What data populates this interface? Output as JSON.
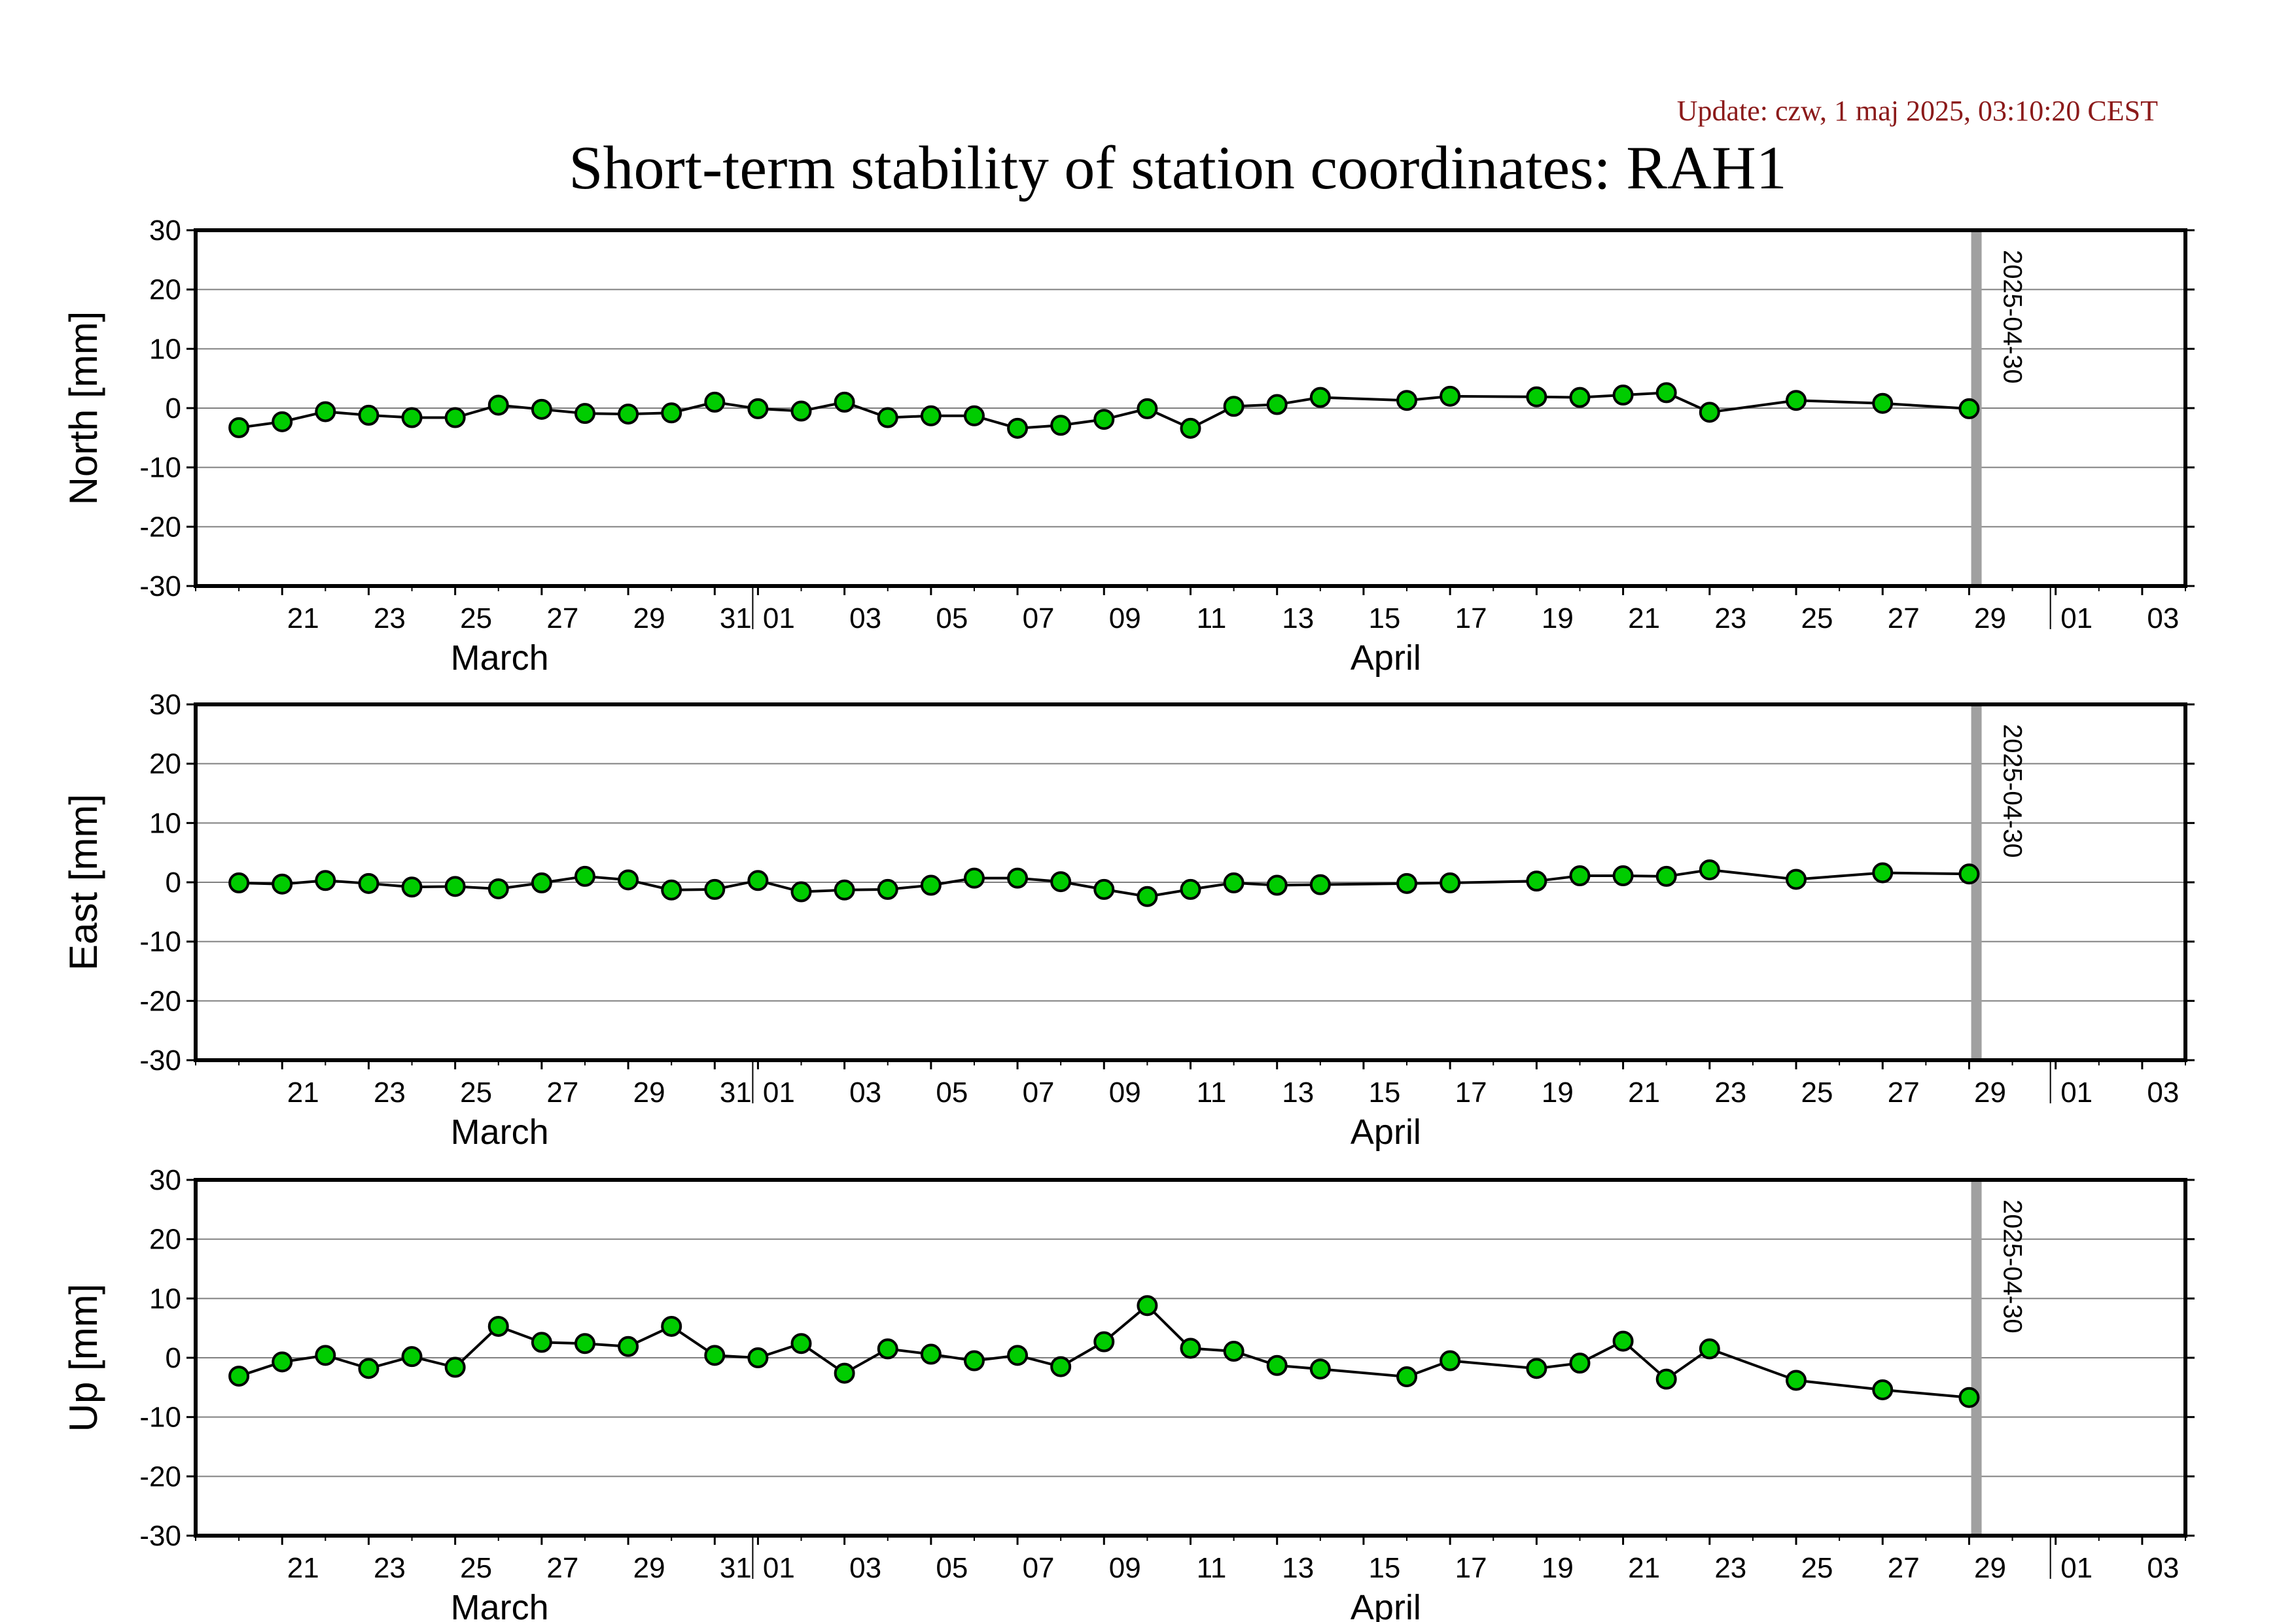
{
  "update_text": "Update: czw, 1 maj 2025, 03:10:20 CEST",
  "title": "Short-term stability of station coordinates: RAH1",
  "colors": {
    "update_text": "#8b1a1a",
    "marker_fill": "#00cc00",
    "marker_stroke": "#000000",
    "line": "#000000",
    "grid": "#808080",
    "marker_line": "#a0a0a0"
  },
  "chart_data": [
    {
      "type": "line",
      "ylabel": "North [mm]",
      "ylim": [
        -30,
        30
      ],
      "yticks": [
        -30,
        -20,
        -10,
        0,
        10,
        20,
        30
      ],
      "xlim": [
        "2025-03-19",
        "2025-05-04"
      ],
      "x_tick_labels": [
        "21",
        "23",
        "25",
        "27",
        "29",
        "31",
        "01",
        "03",
        "05",
        "07",
        "09",
        "11",
        "13",
        "15",
        "17",
        "19",
        "21",
        "23",
        "25",
        "27",
        "29",
        "01",
        "03"
      ],
      "month_labels": [
        "March",
        "April"
      ],
      "grid": "horizontal",
      "marker_line": {
        "date": "2025-04-30",
        "label": "2025-04-30"
      },
      "series": [
        {
          "x": [
            "2025-03-20",
            "2025-03-21",
            "2025-03-22",
            "2025-03-23",
            "2025-03-24",
            "2025-03-25",
            "2025-03-26",
            "2025-03-27",
            "2025-03-28",
            "2025-03-29",
            "2025-03-30",
            "2025-03-31",
            "2025-04-01",
            "2025-04-02",
            "2025-04-03",
            "2025-04-04",
            "2025-04-05",
            "2025-04-06",
            "2025-04-07",
            "2025-04-08",
            "2025-04-09",
            "2025-04-10",
            "2025-04-11",
            "2025-04-12",
            "2025-04-13",
            "2025-04-14",
            "2025-04-16",
            "2025-04-17",
            "2025-04-19",
            "2025-04-20",
            "2025-04-21",
            "2025-04-22",
            "2025-04-23",
            "2025-04-25",
            "2025-04-27",
            "2025-04-29"
          ],
          "y": [
            -3.3,
            -2.3,
            -0.6,
            -1.2,
            -1.6,
            -1.6,
            0.5,
            -0.2,
            -0.9,
            -1.0,
            -0.8,
            1.0,
            -0.1,
            -0.5,
            1.0,
            -1.6,
            -1.3,
            -1.3,
            -3.4,
            -2.9,
            -1.9,
            -0.1,
            -3.4,
            0.3,
            0.6,
            1.8,
            1.3,
            2.0,
            1.9,
            1.8,
            2.2,
            2.6,
            -0.7,
            1.3,
            0.8,
            -0.1
          ]
        }
      ]
    },
    {
      "type": "line",
      "ylabel": "East [mm]",
      "ylim": [
        -30,
        30
      ],
      "yticks": [
        -30,
        -20,
        -10,
        0,
        10,
        20,
        30
      ],
      "xlim": [
        "2025-03-19",
        "2025-05-04"
      ],
      "x_tick_labels": [
        "21",
        "23",
        "25",
        "27",
        "29",
        "31",
        "01",
        "03",
        "05",
        "07",
        "09",
        "11",
        "13",
        "15",
        "17",
        "19",
        "21",
        "23",
        "25",
        "27",
        "29",
        "01",
        "03"
      ],
      "month_labels": [
        "March",
        "April"
      ],
      "grid": "horizontal",
      "marker_line": {
        "date": "2025-04-30",
        "label": "2025-04-30"
      },
      "series": [
        {
          "x": [
            "2025-03-20",
            "2025-03-21",
            "2025-03-22",
            "2025-03-23",
            "2025-03-24",
            "2025-03-25",
            "2025-03-26",
            "2025-03-27",
            "2025-03-28",
            "2025-03-29",
            "2025-03-30",
            "2025-03-31",
            "2025-04-01",
            "2025-04-02",
            "2025-04-03",
            "2025-04-04",
            "2025-04-05",
            "2025-04-06",
            "2025-04-07",
            "2025-04-08",
            "2025-04-09",
            "2025-04-10",
            "2025-04-11",
            "2025-04-12",
            "2025-04-13",
            "2025-04-14",
            "2025-04-16",
            "2025-04-17",
            "2025-04-19",
            "2025-04-20",
            "2025-04-21",
            "2025-04-22",
            "2025-04-23",
            "2025-04-25",
            "2025-04-27",
            "2025-04-29"
          ],
          "y": [
            -0.1,
            -0.3,
            0.3,
            -0.2,
            -0.8,
            -0.7,
            -1.1,
            -0.1,
            1.0,
            0.4,
            -1.3,
            -1.2,
            0.3,
            -1.6,
            -1.3,
            -1.2,
            -0.5,
            0.7,
            0.7,
            0.1,
            -1.2,
            -2.4,
            -1.2,
            -0.1,
            -0.5,
            -0.4,
            -0.2,
            -0.1,
            0.2,
            1.1,
            1.1,
            1.0,
            2.1,
            0.5,
            1.6,
            1.4
          ]
        }
      ]
    },
    {
      "type": "line",
      "ylabel": "Up [mm]",
      "ylim": [
        -30,
        30
      ],
      "yticks": [
        -30,
        -20,
        -10,
        0,
        10,
        20,
        30
      ],
      "xlim": [
        "2025-03-19",
        "2025-05-04"
      ],
      "x_tick_labels": [
        "21",
        "23",
        "25",
        "27",
        "29",
        "31",
        "01",
        "03",
        "05",
        "07",
        "09",
        "11",
        "13",
        "15",
        "17",
        "19",
        "21",
        "23",
        "25",
        "27",
        "29",
        "01",
        "03"
      ],
      "month_labels": [
        "March",
        "April"
      ],
      "grid": "horizontal",
      "marker_line": {
        "date": "2025-04-30",
        "label": "2025-04-30"
      },
      "series": [
        {
          "x": [
            "2025-03-20",
            "2025-03-21",
            "2025-03-22",
            "2025-03-23",
            "2025-03-24",
            "2025-03-25",
            "2025-03-26",
            "2025-03-27",
            "2025-03-28",
            "2025-03-29",
            "2025-03-30",
            "2025-03-31",
            "2025-04-01",
            "2025-04-02",
            "2025-04-03",
            "2025-04-04",
            "2025-04-05",
            "2025-04-06",
            "2025-04-07",
            "2025-04-08",
            "2025-04-09",
            "2025-04-10",
            "2025-04-11",
            "2025-04-12",
            "2025-04-13",
            "2025-04-14",
            "2025-04-16",
            "2025-04-17",
            "2025-04-19",
            "2025-04-20",
            "2025-04-21",
            "2025-04-22",
            "2025-04-23",
            "2025-04-25",
            "2025-04-27",
            "2025-04-29"
          ],
          "y": [
            -3.1,
            -0.7,
            0.4,
            -1.8,
            0.2,
            -1.6,
            5.3,
            2.6,
            2.4,
            1.9,
            5.3,
            0.4,
            0.0,
            2.4,
            -2.6,
            1.5,
            0.6,
            -0.5,
            0.4,
            -1.5,
            2.7,
            8.8,
            1.6,
            1.1,
            -1.3,
            -1.9,
            -3.2,
            -0.5,
            -1.8,
            -0.9,
            2.8,
            -3.6,
            1.5,
            -3.8,
            -5.4,
            -6.7
          ]
        }
      ]
    }
  ]
}
